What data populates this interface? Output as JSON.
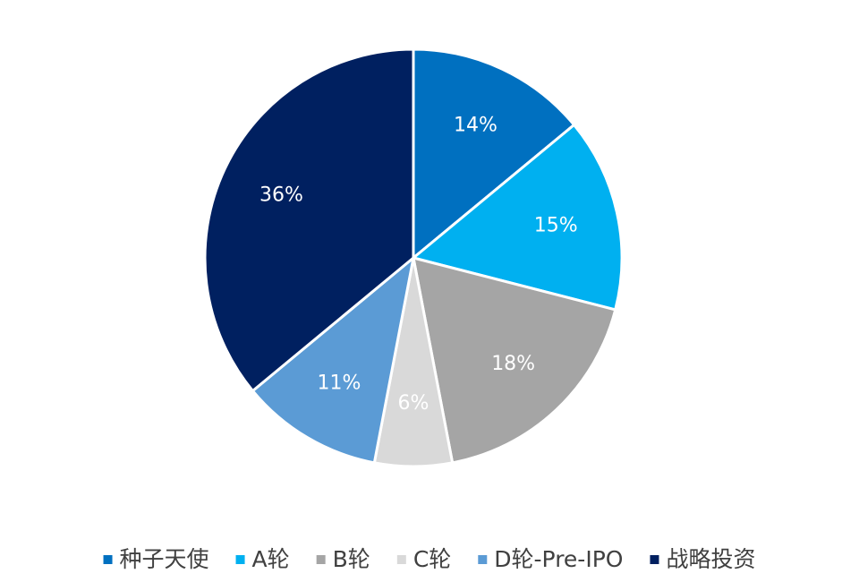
{
  "chart_data": {
    "type": "pie",
    "categories": [
      "种子天使",
      "A轮",
      "B轮",
      "C轮",
      "D轮-Pre-IPO",
      "战略投资"
    ],
    "values": [
      14,
      15,
      18,
      6,
      11,
      36
    ],
    "value_labels": [
      "14%",
      "15%",
      "18%",
      "6%",
      "11%",
      "36%"
    ],
    "colors": [
      "#0070c0",
      "#00b0f0",
      "#a5a5a5",
      "#d9d9d9",
      "#5b9bd5",
      "#002060"
    ],
    "legend": "bottom"
  }
}
